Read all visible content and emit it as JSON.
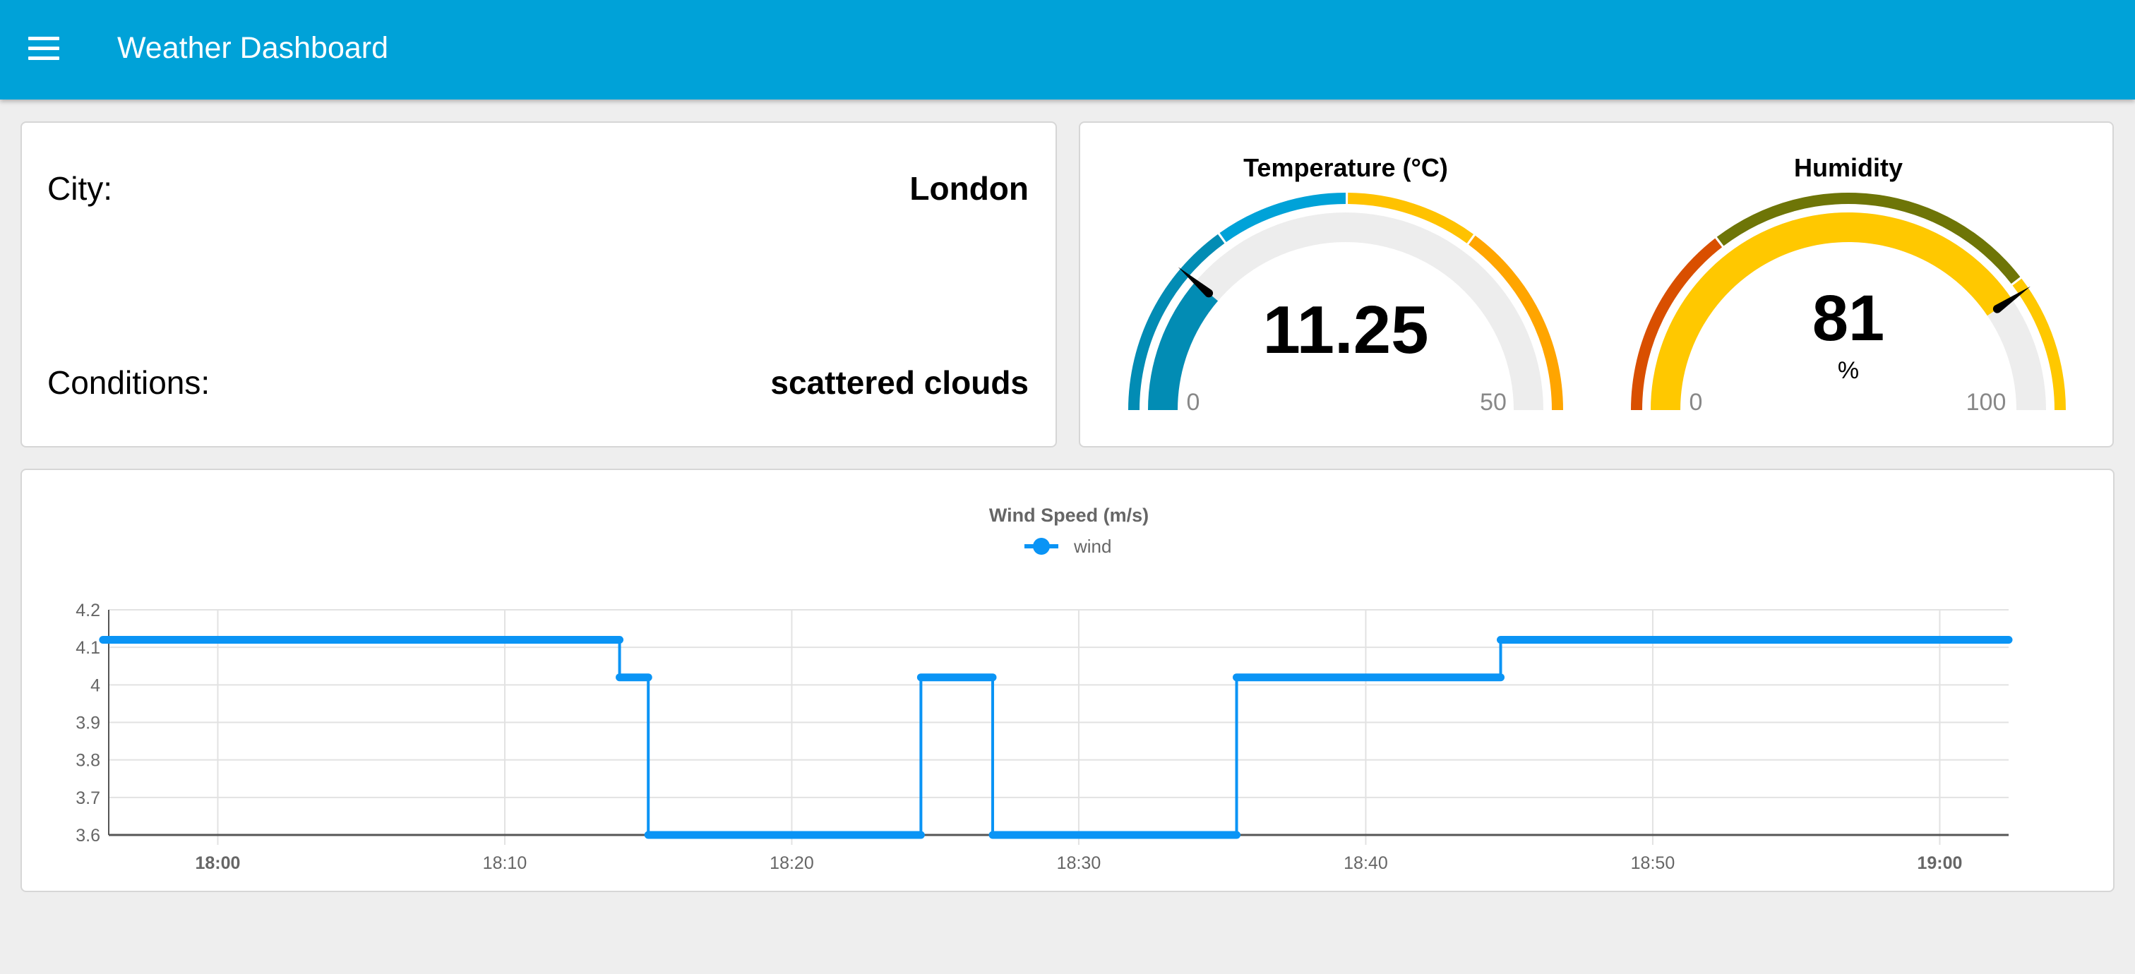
{
  "header": {
    "title": "Weather Dashboard",
    "menu_icon": "hamburger-menu-icon"
  },
  "info": {
    "city_label": "City:",
    "city_value": "London",
    "conditions_label": "Conditions:",
    "conditions_value": "scattered clouds"
  },
  "gauges": {
    "temperature": {
      "title": "Temperature (°C)",
      "value": 11.25,
      "value_text": "11.25",
      "unit": "",
      "min": 0,
      "max": 50,
      "min_label": "0",
      "max_label": "50",
      "fill_color": "#028cb4",
      "sectors": [
        {
          "from": 0,
          "to": 15,
          "color": "#028cb4"
        },
        {
          "from": 15,
          "to": 25,
          "color": "#00a2d8"
        },
        {
          "from": 25,
          "to": 35,
          "color": "#ffc200"
        },
        {
          "from": 35,
          "to": 50,
          "color": "#ffa500"
        }
      ]
    },
    "humidity": {
      "title": "Humidity",
      "value": 81,
      "value_text": "81",
      "unit": "%",
      "min": 0,
      "max": 100,
      "min_label": "0",
      "max_label": "100",
      "fill_color": "#ffc800",
      "sectors": [
        {
          "from": 0,
          "to": 29,
          "color": "#d94f00"
        },
        {
          "from": 29,
          "to": 79,
          "color": "#6e7507"
        },
        {
          "from": 79,
          "to": 100,
          "color": "#ffc800"
        }
      ]
    }
  },
  "chart_data": {
    "type": "line",
    "title": "Wind Speed (m/s)",
    "series": [
      {
        "name": "wind",
        "color": "#0a94f5",
        "points": [
          [
            "17:56",
            4.12
          ],
          [
            "18:14",
            4.12
          ],
          [
            "18:14",
            4.02
          ],
          [
            "18:15",
            4.02
          ],
          [
            "18:15",
            3.6
          ],
          [
            "18:24.5",
            3.6
          ],
          [
            "18:24.5",
            4.02
          ],
          [
            "18:27",
            4.02
          ],
          [
            "18:27",
            3.6
          ],
          [
            "18:35.5",
            3.6
          ],
          [
            "18:35.5",
            4.02
          ],
          [
            "18:44.7",
            4.02
          ],
          [
            "18:44.7",
            4.12
          ],
          [
            "19:02.4",
            4.12
          ]
        ]
      }
    ],
    "x_ticks": [
      {
        "label": "18:00",
        "t": "18:00",
        "bold": true
      },
      {
        "label": "18:10",
        "t": "18:10"
      },
      {
        "label": "18:20",
        "t": "18:20"
      },
      {
        "label": "18:30",
        "t": "18:30"
      },
      {
        "label": "18:40",
        "t": "18:40"
      },
      {
        "label": "18:50",
        "t": "18:50"
      },
      {
        "label": "19:00",
        "t": "19:00",
        "bold": true
      }
    ],
    "xlim": [
      "17:56.2",
      "19:02.4"
    ],
    "y_ticks": [
      "4.2",
      "4.1",
      "4",
      "3.9",
      "3.8",
      "3.7",
      "3.6"
    ],
    "ylim": [
      3.6,
      4.2
    ],
    "grid": true,
    "legend": "top"
  }
}
